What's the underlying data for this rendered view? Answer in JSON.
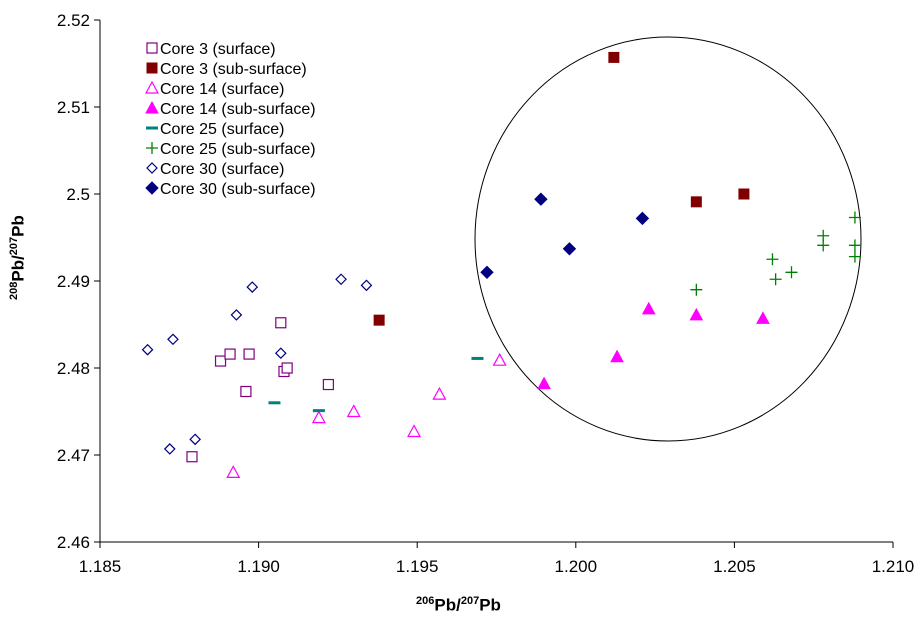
{
  "chart_data": {
    "type": "scatter",
    "title": "",
    "xlabel": {
      "sup1": "206",
      "base1": "Pb/",
      "sup2": "207",
      "base2": "Pb"
    },
    "ylabel": {
      "sup1": "208",
      "base1": "Pb/",
      "sup2": "207",
      "base2": "Pb"
    },
    "xlim": [
      1.185,
      1.21
    ],
    "ylim": [
      2.46,
      2.52
    ],
    "xticks": [
      "1.185",
      "1.190",
      "1.195",
      "1.200",
      "1.205",
      "1.210"
    ],
    "yticks": [
      "2.46",
      "2.47",
      "2.48",
      "2.49",
      "2.5",
      "2.51",
      "2.52"
    ],
    "grid": false,
    "legend_position": "top-left",
    "annotation": "circle",
    "series": [
      {
        "name": "Core 3 (surface)",
        "marker": "square-open",
        "color": "#800080",
        "points": [
          [
            1.1879,
            2.4698
          ],
          [
            1.1888,
            2.4808
          ],
          [
            1.1891,
            2.4816
          ],
          [
            1.1896,
            2.4773
          ],
          [
            1.1897,
            2.4816
          ],
          [
            1.1907,
            2.4852
          ],
          [
            1.1908,
            2.4796
          ],
          [
            1.1909,
            2.48
          ],
          [
            1.1922,
            2.4781
          ]
        ]
      },
      {
        "name": "Core 3 (sub-surface)",
        "marker": "square-filled",
        "color": "#800000",
        "points": [
          [
            1.1938,
            2.4855
          ],
          [
            1.2012,
            2.5157
          ],
          [
            1.2038,
            2.4991
          ],
          [
            1.2053,
            2.5
          ]
        ]
      },
      {
        "name": "Core 14 (surface)",
        "marker": "triangle-open",
        "color": "#ff00ff",
        "points": [
          [
            1.1892,
            2.468
          ],
          [
            1.1919,
            2.4743
          ],
          [
            1.193,
            2.475
          ],
          [
            1.1949,
            2.4727
          ],
          [
            1.1957,
            2.477
          ],
          [
            1.1976,
            2.4809
          ]
        ]
      },
      {
        "name": "Core 14 (sub-surface)",
        "marker": "triangle-filled",
        "color": "#ff00ff",
        "points": [
          [
            1.199,
            2.4782
          ],
          [
            1.2013,
            2.4813
          ],
          [
            1.2023,
            2.4868
          ],
          [
            1.2038,
            2.4861
          ],
          [
            1.2059,
            2.4857
          ]
        ]
      },
      {
        "name": "Core 25 (surface)",
        "marker": "dash",
        "color": "#008080",
        "points": [
          [
            1.1905,
            2.476
          ],
          [
            1.1919,
            2.4751
          ],
          [
            1.1969,
            2.4811
          ]
        ]
      },
      {
        "name": "Core 25 (sub-surface)",
        "marker": "plus",
        "color": "#008000",
        "points": [
          [
            1.2038,
            2.489
          ],
          [
            1.2062,
            2.4925
          ],
          [
            1.2063,
            2.4902
          ],
          [
            1.2068,
            2.491
          ],
          [
            1.2078,
            2.4952
          ],
          [
            1.2078,
            2.4941
          ],
          [
            1.2088,
            2.4973
          ],
          [
            1.2088,
            2.4941
          ],
          [
            1.2088,
            2.4928
          ]
        ]
      },
      {
        "name": "Core 30 (surface)",
        "marker": "diamond-open",
        "color": "#000080",
        "points": [
          [
            1.1865,
            2.4821
          ],
          [
            1.1872,
            2.4707
          ],
          [
            1.1873,
            2.4833
          ],
          [
            1.188,
            2.4718
          ],
          [
            1.1893,
            2.4861
          ],
          [
            1.1898,
            2.4893
          ],
          [
            1.1907,
            2.4817
          ],
          [
            1.1926,
            2.4902
          ],
          [
            1.1934,
            2.4895
          ]
        ]
      },
      {
        "name": "Core 30 (sub-surface)",
        "marker": "diamond-filled",
        "color": "#000080",
        "points": [
          [
            1.1972,
            2.491
          ],
          [
            1.1989,
            2.4994
          ],
          [
            1.1998,
            2.4937
          ],
          [
            1.2021,
            2.4972
          ]
        ]
      }
    ]
  }
}
